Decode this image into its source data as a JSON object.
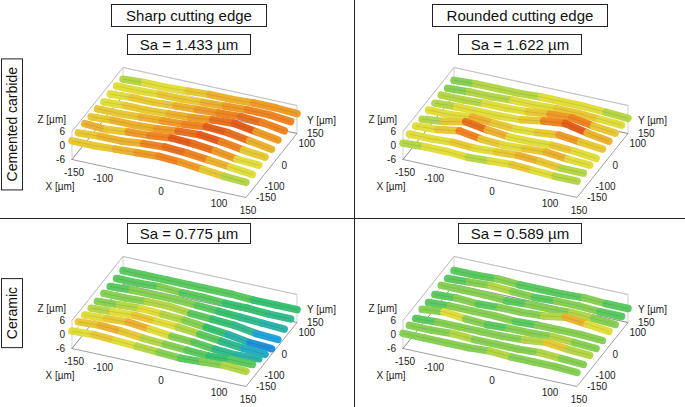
{
  "columns": [
    "Sharp cutting edge",
    "Rounded cutting edge"
  ],
  "rows": [
    "Cemented carbide",
    "Ceramic"
  ],
  "chart_data": [
    {
      "type": "surface",
      "title": "Sa = 1.433 µm",
      "x_label": "X [µm]",
      "y_label": "Y [µm]",
      "z_label": "Z [µm]",
      "x": [
        -150,
        -112.5,
        -75,
        -37.5,
        0,
        37.5,
        75,
        112.5,
        150
      ],
      "y": [
        -150,
        -112.5,
        -75,
        -37.5,
        0,
        37.5,
        75,
        112.5,
        150
      ],
      "z": [
        [
          2,
          2,
          2.5,
          3,
          3.5,
          3,
          2,
          1,
          0.5
        ],
        [
          2,
          2.5,
          2.5,
          3.5,
          4,
          3.5,
          2.5,
          1.5,
          0.5
        ],
        [
          2.5,
          2,
          3,
          3.5,
          4.5,
          4,
          3,
          1.5,
          1
        ],
        [
          2,
          2.5,
          2.5,
          3,
          4,
          4.5,
          3.5,
          2,
          1
        ],
        [
          2,
          2,
          2.5,
          3,
          3.5,
          4.5,
          4,
          2.5,
          1
        ],
        [
          1.5,
          2,
          2,
          2.5,
          3,
          4,
          4.5,
          3,
          1.5
        ],
        [
          1.5,
          2,
          2,
          2.5,
          3,
          3.5,
          4,
          3.5,
          2
        ],
        [
          1.5,
          1.5,
          2,
          2,
          2.5,
          3,
          3.5,
          3.5,
          2.5
        ],
        [
          1,
          1.5,
          1.5,
          2,
          2.5,
          2.5,
          3,
          3,
          2.5
        ]
      ],
      "xlim": [
        -150,
        150
      ],
      "xticks": [
        -150,
        -100,
        0,
        100,
        150
      ],
      "ylim": [
        -150,
        150
      ],
      "yticks": [
        -150,
        -100,
        0,
        100,
        150
      ],
      "zlim": [
        -6,
        6
      ],
      "zticks": [
        -6,
        0,
        6
      ]
    },
    {
      "type": "surface",
      "title": "Sa = 1.622 µm",
      "x_label": "X [µm]",
      "y_label": "Y [µm]",
      "z_label": "Z [µm]",
      "x": [
        -150,
        -112.5,
        -75,
        -37.5,
        0,
        37.5,
        75,
        112.5,
        150
      ],
      "y": [
        -150,
        -112.5,
        -75,
        -37.5,
        0,
        37.5,
        75,
        112.5,
        150
      ],
      "z": [
        [
          1,
          1.5,
          1.5,
          1,
          1.5,
          2,
          1.5,
          1,
          1
        ],
        [
          1.5,
          1.5,
          2,
          1.5,
          2,
          2.5,
          2,
          1,
          1
        ],
        [
          1.5,
          2,
          3.5,
          2,
          1.5,
          2,
          2.5,
          1.5,
          1
        ],
        [
          1,
          2,
          4,
          2.5,
          1.5,
          1.5,
          2,
          1.5,
          0.5
        ],
        [
          1.5,
          1.5,
          2.5,
          2,
          1.5,
          2,
          3,
          2,
          1
        ],
        [
          1,
          1.5,
          1.5,
          1.5,
          2,
          3.5,
          4.5,
          2.5,
          1
        ],
        [
          1,
          1,
          1.5,
          1.5,
          2,
          3,
          3.5,
          2,
          1
        ],
        [
          0.5,
          1,
          1,
          1.5,
          1.5,
          2,
          2,
          1.5,
          1
        ],
        [
          0.5,
          1,
          1,
          1,
          1.5,
          1.5,
          1.5,
          1,
          0.5
        ]
      ],
      "xlim": [
        -150,
        150
      ],
      "xticks": [
        -150,
        -100,
        0,
        100,
        150
      ],
      "ylim": [
        -150,
        150
      ],
      "yticks": [
        -150,
        -100,
        0,
        100,
        150
      ],
      "zlim": [
        -6,
        6
      ],
      "zticks": [
        -6,
        0,
        6
      ]
    },
    {
      "type": "surface",
      "title": "Sa = 0.775 µm",
      "x_label": "X [µm]",
      "y_label": "Y [µm]",
      "z_label": "Z [µm]",
      "x": [
        -150,
        -112.5,
        -75,
        -37.5,
        0,
        37.5,
        75,
        112.5,
        150
      ],
      "y": [
        -150,
        -112.5,
        -75,
        -37.5,
        0,
        37.5,
        75,
        112.5,
        150
      ],
      "z": [
        [
          1.5,
          2,
          1.5,
          1,
          0.5,
          0,
          0.5,
          1,
          0.5
        ],
        [
          2,
          2.5,
          2,
          1,
          0.5,
          0,
          -0.5,
          0,
          0
        ],
        [
          1.5,
          2,
          2.5,
          1.5,
          0.5,
          0,
          -1,
          -1.5,
          -1
        ],
        [
          1,
          1.5,
          2,
          1.5,
          1,
          0,
          -1,
          -2,
          -2.5
        ],
        [
          0.5,
          1,
          1.5,
          1,
          0.5,
          -0.5,
          -1.5,
          -3,
          -3.5
        ],
        [
          0.5,
          0.5,
          1,
          1,
          0,
          -0.5,
          -1,
          -2.5,
          -3
        ],
        [
          0,
          0.5,
          0.5,
          0.5,
          0,
          -0.5,
          -1,
          -1.5,
          -2
        ],
        [
          0,
          0,
          0.5,
          0,
          0,
          -0.5,
          -0.5,
          -1,
          -1
        ],
        [
          0,
          0,
          0,
          0,
          0,
          0,
          -0.5,
          -0.5,
          -0.5
        ]
      ],
      "xlim": [
        -150,
        150
      ],
      "xticks": [
        -150,
        -100,
        0,
        100,
        150
      ],
      "ylim": [
        -150,
        150
      ],
      "yticks": [
        -150,
        -100,
        0,
        100,
        150
      ],
      "zlim": [
        -6,
        6
      ],
      "zticks": [
        -6,
        0,
        6
      ]
    },
    {
      "type": "surface",
      "title": "Sa = 0.589 µm",
      "x_label": "X [µm]",
      "y_label": "Y [µm]",
      "z_label": "Z [µm]",
      "x": [
        -150,
        -112.5,
        -75,
        -37.5,
        0,
        37.5,
        75,
        112.5,
        150
      ],
      "y": [
        -150,
        -112.5,
        -75,
        -37.5,
        0,
        37.5,
        75,
        112.5,
        150
      ],
      "z": [
        [
          0.5,
          0.5,
          0.5,
          0.5,
          1,
          0.5,
          0.5,
          0.5,
          0
        ],
        [
          0.5,
          0.5,
          1,
          0.5,
          0.5,
          0.5,
          1,
          0.5,
          0
        ],
        [
          0,
          0.5,
          0.5,
          0.5,
          0.5,
          1,
          2,
          1,
          0.5
        ],
        [
          0.5,
          1.5,
          0.5,
          0,
          0.5,
          0.5,
          1,
          0.5,
          0
        ],
        [
          0,
          0.5,
          0.5,
          0.5,
          0,
          0.5,
          0.5,
          0.5,
          0
        ],
        [
          0,
          0.5,
          0,
          0.5,
          0.5,
          1,
          2.5,
          1.5,
          0.5
        ],
        [
          0.5,
          0.5,
          0.5,
          0,
          0.5,
          0.5,
          1,
          0.5,
          0
        ],
        [
          0,
          0.5,
          1,
          0.5,
          0,
          0.5,
          0.5,
          0,
          0
        ],
        [
          0,
          0,
          0.5,
          0,
          0,
          0,
          0.5,
          0,
          0
        ]
      ],
      "xlim": [
        -150,
        150
      ],
      "xticks": [
        -150,
        -100,
        0,
        100,
        150
      ],
      "ylim": [
        -150,
        150
      ],
      "yticks": [
        -150,
        -100,
        0,
        100,
        150
      ],
      "zlim": [
        -6,
        6
      ],
      "zticks": [
        -6,
        0,
        6
      ]
    }
  ]
}
